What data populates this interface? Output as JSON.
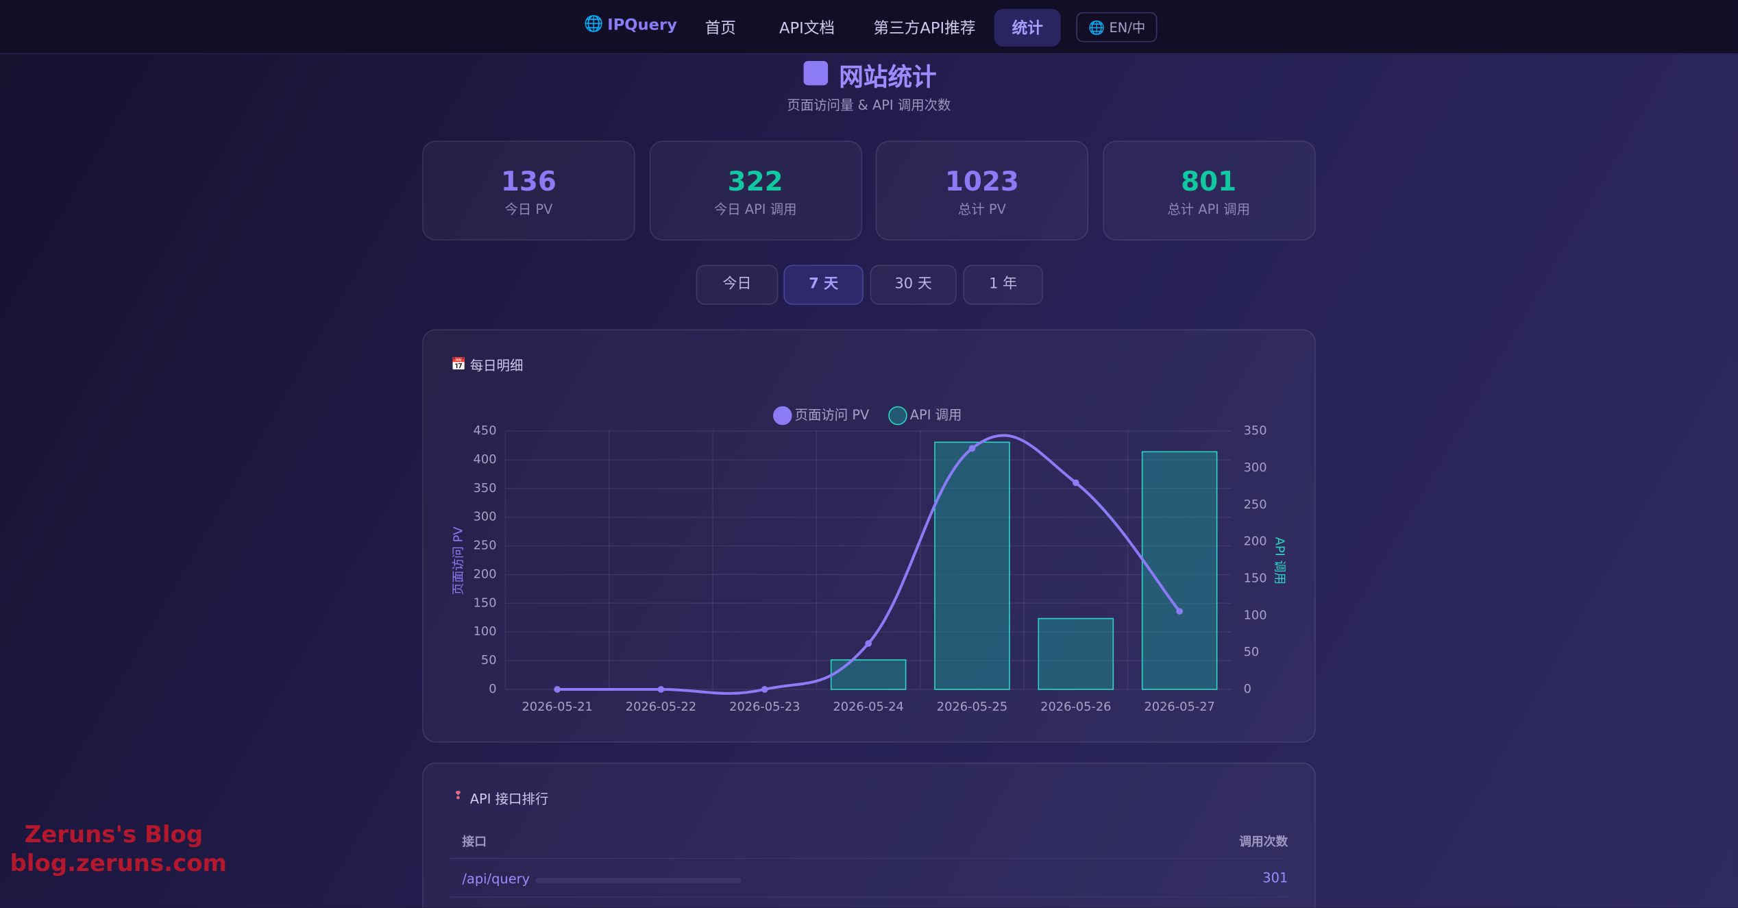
{
  "nav": {
    "brand": "IPQuery",
    "links": [
      "首页",
      "API文档",
      "第三方API推荐",
      "统计"
    ],
    "lang": "EN/中"
  },
  "header": {
    "title": "网站统计",
    "subtitle": "页面访问量 & API 调用次数"
  },
  "stats": [
    {
      "value": 136,
      "label": "今日 PV"
    },
    {
      "value": 322,
      "label": "今日 API 调用"
    },
    {
      "value": 1023,
      "label": "总计 PV"
    },
    {
      "value": 801,
      "label": "总计 API 调用"
    }
  ],
  "ranges": [
    "今日",
    "7 天",
    "30 天",
    "1 年"
  ],
  "chart_card": {
    "title": "每日明细"
  },
  "chart_data": {
    "type": "combo",
    "categories": [
      "2026-05-21",
      "2026-05-22",
      "2026-05-23",
      "2026-05-24",
      "2026-05-25",
      "2026-05-26",
      "2026-05-27"
    ],
    "series": [
      {
        "name": "页面访问 PV",
        "type": "line",
        "axis": "y",
        "color": "#8b7cf6",
        "values": [
          0,
          0,
          0,
          80,
          420,
          360,
          136
        ]
      },
      {
        "name": "API 调用",
        "type": "bar",
        "axis": "y2",
        "color": "#2dd4bf",
        "values": [
          0,
          0,
          0,
          40,
          335,
          96,
          322
        ]
      }
    ],
    "ylim": [
      0,
      450
    ],
    "yticks": [
      0,
      50,
      100,
      150,
      200,
      250,
      300,
      350,
      400,
      450
    ],
    "y2lim": [
      0,
      350
    ],
    "y2ticks": [
      0,
      50,
      100,
      150,
      200,
      250,
      300,
      350
    ],
    "ylabel": "页面访问 PV",
    "y2label": "API 调用",
    "grid": true
  },
  "ranking": {
    "title": "API 接口排行",
    "headers": [
      "接口",
      "调用次数"
    ],
    "rows": [
      [
        "/api/query",
        301
      ]
    ]
  },
  "watermark": [
    "Zeruns's Blog",
    "blog.zeruns.com"
  ]
}
